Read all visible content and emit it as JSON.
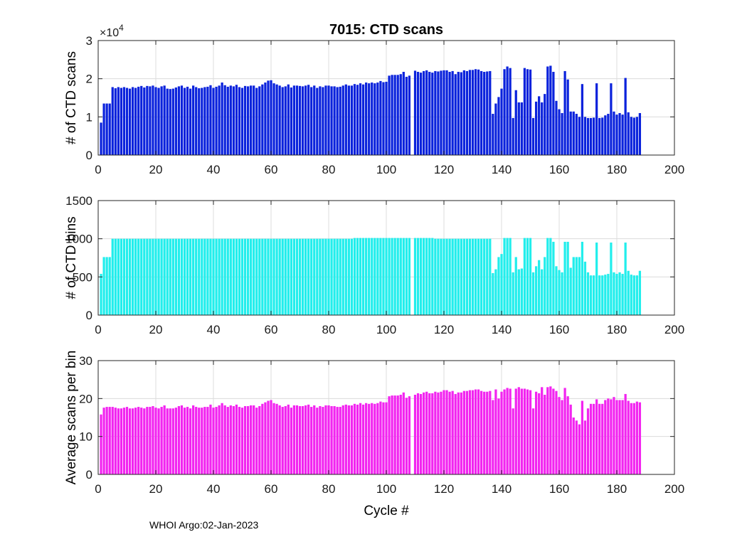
{
  "figure": {
    "title": "7015: CTD scans",
    "footer": "WHOI Argo:02-Jan-2023",
    "xlabel": "Cycle #"
  },
  "chart_data": [
    {
      "type": "bar",
      "ylabel": "# of CTD scans",
      "exponent_label": "×10",
      "exponent_power": "4",
      "color": "#0a22dc",
      "xlim": [
        0,
        200
      ],
      "ylim": [
        0,
        3
      ],
      "xticks": [
        0,
        20,
        40,
        60,
        80,
        100,
        120,
        140,
        160,
        180,
        200
      ],
      "yticks": [
        0,
        1,
        2,
        3
      ],
      "grid": true,
      "x_start": 1,
      "missing_x": [
        108
      ],
      "values": [
        0.85,
        1.35,
        1.35,
        1.35,
        1.78,
        1.75,
        1.78,
        1.76,
        1.78,
        1.76,
        1.74,
        1.78,
        1.76,
        1.79,
        1.81,
        1.77,
        1.81,
        1.8,
        1.82,
        1.78,
        1.76,
        1.8,
        1.82,
        1.74,
        1.73,
        1.74,
        1.77,
        1.8,
        1.82,
        1.76,
        1.79,
        1.74,
        1.82,
        1.78,
        1.75,
        1.76,
        1.78,
        1.79,
        1.83,
        1.76,
        1.79,
        1.82,
        1.9,
        1.83,
        1.79,
        1.82,
        1.8,
        1.84,
        1.78,
        1.76,
        1.81,
        1.8,
        1.82,
        1.82,
        1.76,
        1.8,
        1.85,
        1.9,
        1.95,
        1.96,
        1.88,
        1.85,
        1.82,
        1.78,
        1.8,
        1.85,
        1.77,
        1.82,
        1.82,
        1.81,
        1.8,
        1.82,
        1.84,
        1.78,
        1.82,
        1.76,
        1.8,
        1.78,
        1.82,
        1.82,
        1.8,
        1.8,
        1.78,
        1.79,
        1.82,
        1.85,
        1.82,
        1.82,
        1.86,
        1.84,
        1.88,
        1.85,
        1.9,
        1.88,
        1.9,
        1.88,
        1.9,
        1.94,
        1.91,
        1.92,
        2.08,
        2.1,
        2.1,
        2.1,
        2.12,
        2.18,
        2.05,
        2.08,
        0,
        2.21,
        2.18,
        2.16,
        2.2,
        2.22,
        2.18,
        2.16,
        2.2,
        2.19,
        2.21,
        2.22,
        2.22,
        2.18,
        2.2,
        2.12,
        2.18,
        2.17,
        2.22,
        2.2,
        2.23,
        2.23,
        2.25,
        2.24,
        2.2,
        2.18,
        2.19,
        2.2,
        1.08,
        1.35,
        1.52,
        1.74,
        2.25,
        2.32,
        2.28,
        0.97,
        1.7,
        1.38,
        1.38,
        2.28,
        2.25,
        2.24,
        0.97,
        1.4,
        1.54,
        1.38,
        1.6,
        2.32,
        2.34,
        2.18,
        1.42,
        1.2,
        1.1,
        2.2,
        1.98,
        1.14,
        1.14,
        1.08,
        1.0,
        1.86,
        1.0,
        0.97,
        0.97,
        0.98,
        1.88,
        0.97,
        0.98,
        1.04,
        1.08,
        1.88,
        1.14,
        1.06,
        1.1,
        1.06,
        2.02,
        1.12,
        1.0,
        0.98,
        1.0,
        1.1
      ]
    },
    {
      "type": "bar",
      "ylabel": "# of CTD bins",
      "color": "#22eeec",
      "xlim": [
        0,
        200
      ],
      "ylim": [
        0,
        1500
      ],
      "xticks": [
        0,
        20,
        40,
        60,
        80,
        100,
        120,
        140,
        160,
        180,
        200
      ],
      "yticks": [
        0,
        500,
        1000,
        1500
      ],
      "grid": true,
      "x_start": 1,
      "missing_x": [
        108
      ],
      "values": [
        540,
        760,
        760,
        760,
        1000,
        1000,
        1000,
        1000,
        1000,
        1000,
        1000,
        1000,
        1000,
        1000,
        1000,
        1000,
        1000,
        1000,
        1000,
        1000,
        1000,
        1000,
        1000,
        1000,
        1000,
        1000,
        1000,
        1000,
        1000,
        1000,
        1000,
        1000,
        1000,
        1000,
        1000,
        1000,
        1000,
        1000,
        1000,
        1000,
        1000,
        1000,
        1000,
        1000,
        1000,
        1000,
        1000,
        1000,
        1000,
        1000,
        1000,
        1000,
        1000,
        1000,
        1000,
        1000,
        1000,
        1000,
        1000,
        1000,
        1000,
        1000,
        1000,
        1000,
        1000,
        1000,
        1000,
        1000,
        1000,
        1000,
        1000,
        1000,
        1000,
        1000,
        1000,
        1000,
        1000,
        1000,
        1000,
        1000,
        1000,
        1000,
        1000,
        1000,
        1000,
        1000,
        1000,
        1000,
        1010,
        1010,
        1010,
        1010,
        1010,
        1010,
        1010,
        1010,
        1010,
        1010,
        1010,
        1010,
        1010,
        1010,
        1010,
        1010,
        1010,
        1010,
        1010,
        1010,
        0,
        1010,
        1010,
        1010,
        1010,
        1010,
        1010,
        1010,
        1000,
        1000,
        1000,
        1000,
        1000,
        1000,
        1000,
        1000,
        1000,
        1000,
        1000,
        1000,
        1000,
        1000,
        1000,
        1000,
        1000,
        1000,
        1000,
        1000,
        550,
        600,
        760,
        800,
        1010,
        1010,
        1010,
        560,
        760,
        600,
        610,
        1010,
        1010,
        1010,
        560,
        640,
        720,
        600,
        760,
        1010,
        1010,
        960,
        640,
        590,
        560,
        960,
        960,
        620,
        760,
        760,
        760,
        960,
        700,
        560,
        520,
        520,
        950,
        520,
        520,
        530,
        540,
        950,
        560,
        540,
        560,
        540,
        950,
        580,
        530,
        520,
        520,
        580
      ]
    },
    {
      "type": "bar",
      "ylabel": "Average scans per bin",
      "color": "#f224f0",
      "xlim": [
        0,
        200
      ],
      "ylim": [
        0,
        30
      ],
      "xticks": [
        0,
        20,
        40,
        60,
        80,
        100,
        120,
        140,
        160,
        180,
        200
      ],
      "yticks": [
        0,
        10,
        20,
        30
      ],
      "grid": true,
      "x_start": 1,
      "missing_x": [
        108
      ],
      "values": [
        15.8,
        17.6,
        17.8,
        17.8,
        17.8,
        17.6,
        17.4,
        17.4,
        17.6,
        17.8,
        17.4,
        17.4,
        17.6,
        17.8,
        17.6,
        17.4,
        17.8,
        17.8,
        18.0,
        17.6,
        17.4,
        17.8,
        18.2,
        17.4,
        17.4,
        17.4,
        17.6,
        18.0,
        18.2,
        17.6,
        17.8,
        17.4,
        18.2,
        17.8,
        17.6,
        17.6,
        17.8,
        17.8,
        18.4,
        17.6,
        17.8,
        18.2,
        18.8,
        18.2,
        17.8,
        18.2,
        18.0,
        18.4,
        17.8,
        17.6,
        18.0,
        18.0,
        18.2,
        18.2,
        17.6,
        18.0,
        18.6,
        19.0,
        19.4,
        19.6,
        18.8,
        18.6,
        18.2,
        17.8,
        18.0,
        18.4,
        17.6,
        18.2,
        18.2,
        18.0,
        18.0,
        18.2,
        18.4,
        17.8,
        18.2,
        17.6,
        18.0,
        17.8,
        18.2,
        18.2,
        18.0,
        18.0,
        17.8,
        17.8,
        18.2,
        18.4,
        18.2,
        18.2,
        18.6,
        18.4,
        18.8,
        18.4,
        18.8,
        18.6,
        18.8,
        18.6,
        18.8,
        19.2,
        19.0,
        19.0,
        20.6,
        20.8,
        20.8,
        20.8,
        21.0,
        21.6,
        20.2,
        20.6,
        0,
        21.0,
        21.4,
        21.2,
        21.6,
        21.8,
        21.4,
        21.4,
        21.8,
        21.6,
        21.8,
        22.2,
        22.2,
        21.8,
        22.0,
        21.2,
        21.6,
        21.6,
        22.0,
        22.0,
        22.2,
        22.2,
        22.4,
        22.4,
        22.0,
        21.8,
        21.8,
        22.0,
        19.6,
        22.4,
        20.0,
        21.8,
        22.4,
        22.8,
        22.6,
        17.4,
        22.6,
        23.0,
        22.6,
        22.6,
        22.4,
        22.2,
        17.4,
        21.8,
        21.4,
        23.0,
        21.0,
        23.0,
        23.2,
        22.6,
        22.0,
        20.4,
        19.6,
        22.8,
        20.6,
        18.4,
        15.0,
        14.2,
        13.2,
        19.4,
        14.2,
        17.4,
        18.6,
        18.6,
        19.8,
        18.6,
        18.6,
        19.6,
        20.0,
        19.8,
        20.4,
        19.6,
        19.6,
        19.6,
        21.2,
        19.4,
        18.8,
        18.8,
        19.2,
        19.0
      ]
    }
  ]
}
